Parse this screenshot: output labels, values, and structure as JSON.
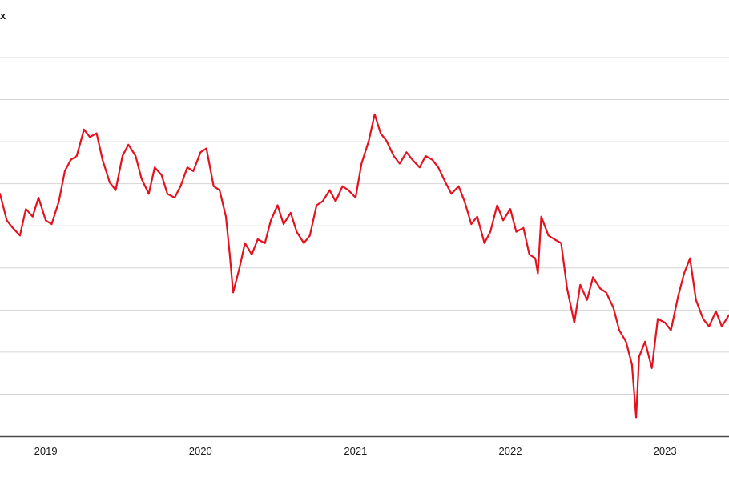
{
  "chart_data": {
    "type": "line",
    "title": "x",
    "xlabel": "",
    "ylabel": "",
    "x_ticks": [
      "2019",
      "2020",
      "2021",
      "2022",
      "2023"
    ],
    "xlim": [
      "2018-09-15",
      "2023-06-01"
    ],
    "ylim": [
      0,
      100
    ],
    "grid": "horizontal",
    "colors": {
      "series": "#e3121e",
      "grid": "#d4d4d4",
      "axis": "#4a4a4a"
    },
    "series": [
      {
        "x": [
          "2018-09-15",
          "2018-10-01",
          "2018-10-15",
          "2018-11-01",
          "2018-11-15",
          "2018-12-01",
          "2018-12-15",
          "2019-01-01",
          "2019-01-15",
          "2019-02-01",
          "2019-02-15",
          "2019-03-01",
          "2019-03-15",
          "2019-04-01",
          "2019-04-15",
          "2019-05-01",
          "2019-05-15",
          "2019-06-01",
          "2019-06-15",
          "2019-07-01",
          "2019-07-15",
          "2019-08-01",
          "2019-08-15",
          "2019-09-01",
          "2019-09-15",
          "2019-10-01",
          "2019-10-15",
          "2019-11-01",
          "2019-11-15",
          "2019-12-01",
          "2019-12-15",
          "2020-01-01",
          "2020-01-15",
          "2020-02-01",
          "2020-02-15",
          "2020-03-01",
          "2020-03-10",
          "2020-03-18",
          "2020-04-01",
          "2020-04-15",
          "2020-05-01",
          "2020-05-15",
          "2020-06-01",
          "2020-06-15",
          "2020-07-01",
          "2020-07-15",
          "2020-08-01",
          "2020-08-15",
          "2020-09-01",
          "2020-09-15",
          "2020-10-01",
          "2020-10-15",
          "2020-11-01",
          "2020-11-15",
          "2020-12-01",
          "2020-12-15",
          "2021-01-01",
          "2021-01-15",
          "2021-02-01",
          "2021-02-15",
          "2021-03-01",
          "2021-03-15",
          "2021-04-01",
          "2021-04-15",
          "2021-05-01",
          "2021-05-15",
          "2021-06-01",
          "2021-06-15",
          "2021-07-01",
          "2021-07-15",
          "2021-08-01",
          "2021-08-15",
          "2021-09-01",
          "2021-09-15",
          "2021-10-01",
          "2021-10-15",
          "2021-11-01",
          "2021-11-15",
          "2021-12-01",
          "2021-12-15",
          "2022-01-01",
          "2022-01-15",
          "2022-02-01",
          "2022-02-15",
          "2022-03-01",
          "2022-03-07",
          "2022-03-15",
          "2022-04-01",
          "2022-04-15",
          "2022-05-01",
          "2022-05-15",
          "2022-06-01",
          "2022-06-15",
          "2022-07-01",
          "2022-07-15",
          "2022-08-01",
          "2022-08-15",
          "2022-09-01",
          "2022-09-15",
          "2022-10-01",
          "2022-10-15",
          "2022-10-25",
          "2022-11-01",
          "2022-11-15",
          "2022-12-01",
          "2022-12-15",
          "2023-01-01",
          "2023-01-15",
          "2023-02-01",
          "2023-02-15",
          "2023-03-01",
          "2023-03-15",
          "2023-04-01",
          "2023-04-15",
          "2023-05-01",
          "2023-05-15",
          "2023-06-01"
        ],
        "values": [
          64,
          57,
          55,
          53,
          60,
          58,
          63,
          57,
          56,
          62,
          70,
          73,
          74,
          81,
          79,
          80,
          73,
          67,
          65,
          74,
          77,
          74,
          68,
          64,
          71,
          69,
          64,
          63,
          66,
          71,
          70,
          75,
          76,
          66,
          65,
          58,
          48,
          38,
          44,
          51,
          48,
          52,
          51,
          57,
          61,
          56,
          59,
          54,
          51,
          53,
          61,
          62,
          65,
          62,
          66,
          65,
          63,
          72,
          78,
          85,
          80,
          78,
          74,
          72,
          75,
          73,
          71,
          74,
          73,
          71,
          67,
          64,
          66,
          62,
          56,
          58,
          51,
          54,
          61,
          57,
          60,
          54,
          55,
          48,
          47,
          43,
          58,
          53,
          52,
          51,
          39,
          30,
          40,
          36,
          42,
          39,
          38,
          34,
          28,
          25,
          19,
          5,
          21,
          25,
          18,
          31,
          30,
          28,
          37,
          43,
          47,
          36,
          31,
          29,
          33,
          29,
          32
        ]
      }
    ]
  }
}
